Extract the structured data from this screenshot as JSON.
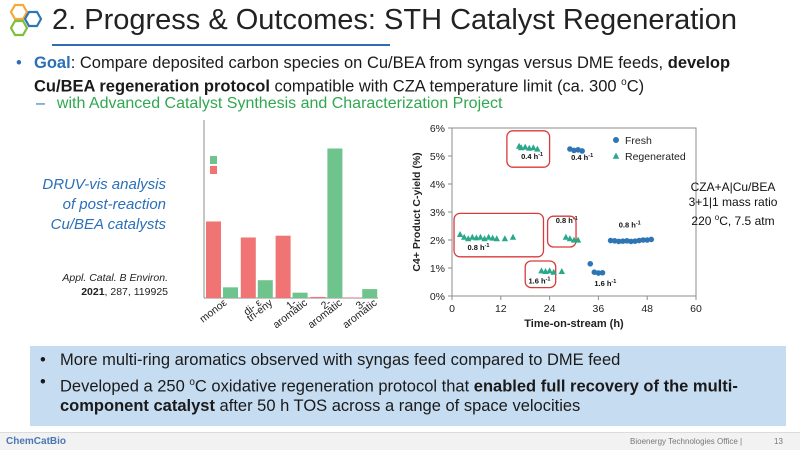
{
  "slide": {
    "title": "2. Progress & Outcomes: STH Catalyst Regeneration",
    "goal_label": "Goal",
    "goal_text_1": ": Compare deposited carbon species on Cu/BEA from syngas versus DME feeds,",
    "goal_bold": "develop Cu/BEA regeneration protocol",
    "goal_text_2": " compatible with CZA temperature limit (ca. 300 ",
    "goal_sup": "o",
    "goal_text_3": "C)",
    "sub_bullet": "with Advanced Catalyst Synthesis and Characterization Project"
  },
  "left_panel": {
    "druv_lines": [
      "DRUV-vis analysis",
      "of post-reaction",
      "Cu/BEA catalysts"
    ],
    "citation_journal": "Appl. Catal. B Environ.",
    "citation_year": "2021",
    "citation_rest": ", 287, 119925"
  },
  "bar_chart": {
    "type": "bar",
    "categories": [
      "mono",
      "di- & tri-ene",
      "1-ring aromatics",
      "2-ring aromatics",
      "3-ring aromatics"
    ],
    "tick_labels": [
      "monoε",
      "di- ε\ntri-eny",
      "1-\naromatic",
      "2-\naromatic",
      "3-\naromatic"
    ],
    "series": [
      {
        "color": "#f07474",
        "values": [
          0.43,
          0.34,
          0.35,
          0.006,
          0.003
        ]
      },
      {
        "color": "#6fc48d",
        "values": [
          0.06,
          0.1,
          0.03,
          0.84,
          0.05
        ]
      }
    ],
    "legend_markers": [
      {
        "color": "#6fc48d"
      },
      {
        "color": "#f07474"
      }
    ],
    "ylim": [
      0,
      1
    ]
  },
  "chart_data": {
    "type": "scatter",
    "xlabel": "Time-on-stream (h)",
    "ylabel": "C4+ Product C-yield (%)",
    "xlim": [
      0,
      60
    ],
    "ylim": [
      0,
      6
    ],
    "x_ticks": [
      "0",
      "12",
      "24",
      "36",
      "48",
      "60"
    ],
    "y_ticks": [
      "0%",
      "1%",
      "2%",
      "3%",
      "4%",
      "5%",
      "6%"
    ],
    "legend_position": "top-right",
    "series": [
      {
        "name": "Fresh",
        "color": "#2e75b6",
        "marker": "circle",
        "x": [
          29,
          30,
          31,
          32,
          34,
          35,
          36,
          37,
          39,
          40,
          41,
          42,
          43,
          44,
          45,
          46,
          47,
          48,
          49
        ],
        "y": [
          5.25,
          5.2,
          5.22,
          5.18,
          1.15,
          0.85,
          0.82,
          0.83,
          1.98,
          1.97,
          1.95,
          1.96,
          1.97,
          1.95,
          1.96,
          1.98,
          2.0,
          2.0,
          2.02
        ]
      },
      {
        "name": "Regenerated",
        "color": "#2aa88a",
        "marker": "triangle",
        "x": [
          2,
          3,
          4,
          5,
          6,
          7,
          8,
          9,
          10,
          11,
          13,
          15,
          16.5,
          17,
          18,
          19,
          20,
          21,
          22,
          23,
          24,
          25,
          27,
          28,
          29,
          30,
          31
        ],
        "y": [
          2.2,
          2.1,
          2.05,
          2.1,
          2.08,
          2.1,
          2.05,
          2.1,
          2.07,
          2.05,
          2.05,
          2.1,
          5.35,
          5.3,
          5.32,
          5.28,
          5.3,
          5.25,
          0.9,
          0.88,
          0.9,
          0.85,
          0.88,
          2.1,
          2.05,
          2.0,
          2.0
        ]
      }
    ],
    "annotations": [
      {
        "text": "0.4 h",
        "sup": "-1",
        "x": 17,
        "y": 4.9,
        "boxed": true
      },
      {
        "text": "0.4 h",
        "sup": "-1",
        "x": 29.3,
        "y": 4.85,
        "boxed": false
      },
      {
        "text": "0.8 h",
        "sup": "-1",
        "x": 3.8,
        "y": 1.65,
        "boxed": true
      },
      {
        "text": "0.8 h",
        "sup": "-1",
        "x": 25.5,
        "y": 2.6,
        "boxed": true
      },
      {
        "text": "1.6 h",
        "sup": "-1",
        "x": 18.8,
        "y": 0.45,
        "boxed": true
      },
      {
        "text": "1.6 h",
        "sup": "-1",
        "x": 35,
        "y": 0.35,
        "boxed": false
      },
      {
        "text": "0.8 h",
        "sup": "-1",
        "x": 41,
        "y": 2.45,
        "boxed": false
      }
    ]
  },
  "catalyst_note": {
    "line1": "CZA+A|Cu/BEA",
    "line2": "3+1|1 mass ratio",
    "line3_pre": "220 ",
    "line3_sup": "o",
    "line3_post": "C, 7.5 atm"
  },
  "outcomes": {
    "bullet1": "More multi-ring aromatics observed with syngas feed compared to DME feed",
    "bullet2_pre": "Developed a 250 ",
    "bullet2_sup": "o",
    "bullet2_mid": "C oxidative regeneration protocol that ",
    "bullet2_bold": "enabled full recovery of the multi-component catalyst",
    "bullet2_post": " after 50 h TOS across a range of space velocities"
  },
  "footer": {
    "brand": "ChemCatBio",
    "office": "Bioenergy Technologies Office  |",
    "page": "13"
  },
  "colors": {
    "title_rule": "#2f6db5",
    "goal_label": "#2a6fb8",
    "sub_bullet": "#2fa84f",
    "outcomes_bg": "#c6dcf1",
    "hex_orange": "#f3a93b",
    "hex_blue": "#2e75b6",
    "hex_green": "#7cbf3a"
  }
}
